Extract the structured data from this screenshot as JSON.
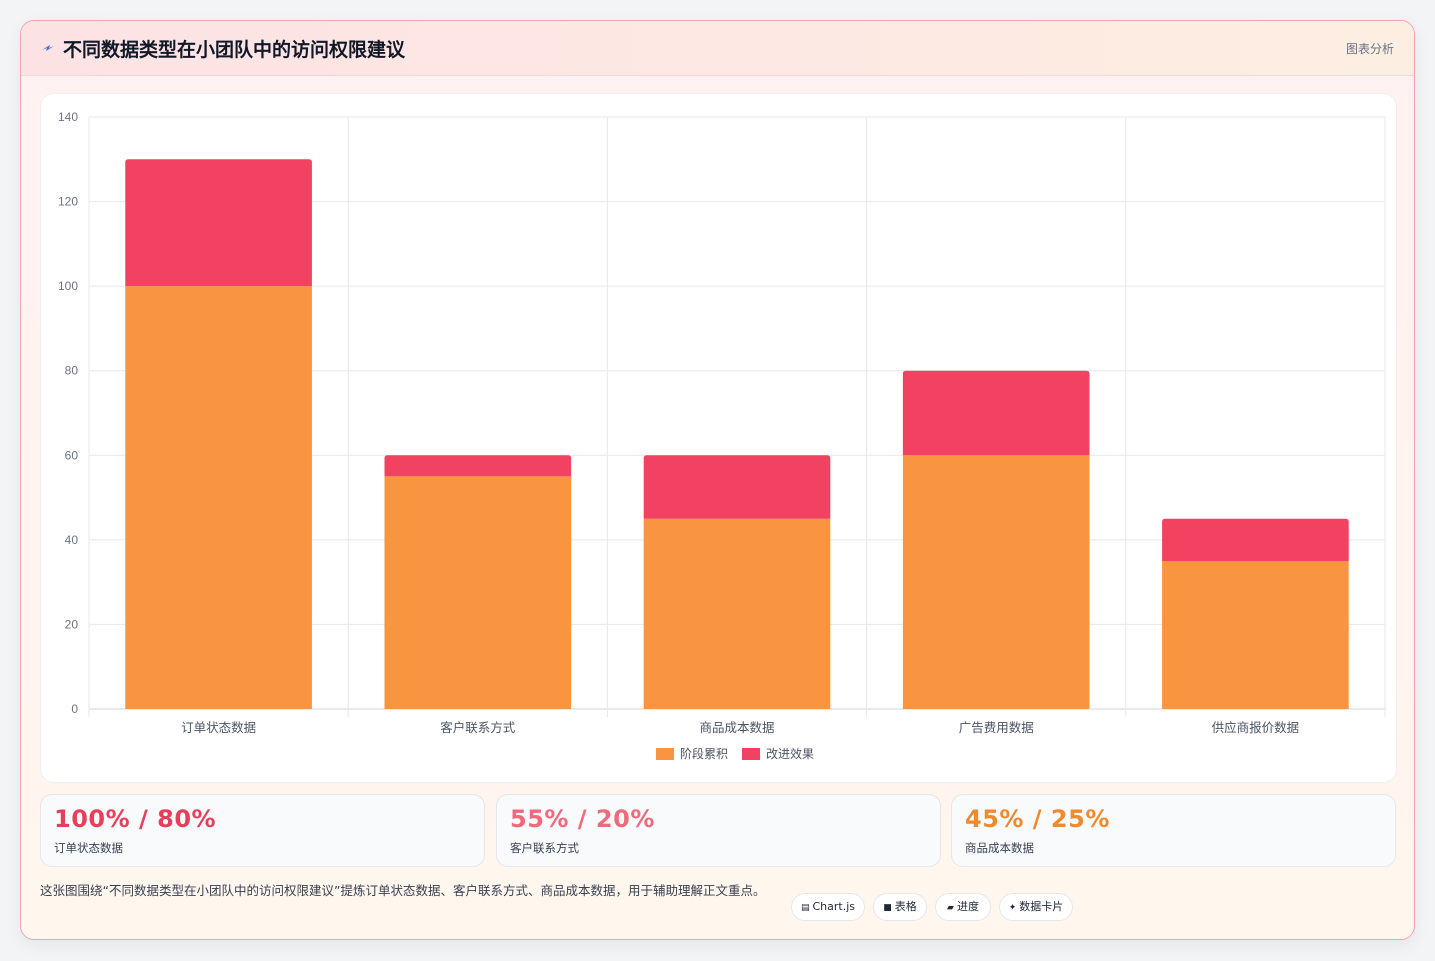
{
  "header": {
    "title": "不同数据类型在小团队中的访问权限建议",
    "tag": "图表分析",
    "icon": "lightning-icon"
  },
  "chart_data": {
    "type": "bar",
    "stacked": true,
    "categories": [
      "订单状态数据",
      "客户联系方式",
      "商品成本数据",
      "广告费用数据",
      "供应商报价数据"
    ],
    "series": [
      {
        "name": "阶段累积",
        "values": [
          100,
          55,
          45,
          60,
          35
        ],
        "color": "#f99440"
      },
      {
        "name": "改进效果",
        "values": [
          30,
          5,
          15,
          20,
          10
        ],
        "color": "#f24262"
      }
    ],
    "ylim": [
      0,
      140
    ],
    "yticks": [
      0,
      20,
      40,
      60,
      80,
      100,
      120,
      140
    ],
    "grid": true,
    "legend": "bottom"
  },
  "stats": [
    {
      "value": "100% / 80%",
      "label": "订单状态数据",
      "color": "#e83e5c"
    },
    {
      "value": "55% / 20%",
      "label": "客户联系方式",
      "color": "#f06a7c"
    },
    {
      "value": "45% / 25%",
      "label": "商品成本数据",
      "color": "#f08a2e"
    }
  ],
  "description": "这张图围绕“不同数据类型在小团队中的访问权限建议”提炼订单状态数据、客户联系方式、商品成本数据，用于辅助理解正文重点。",
  "chips": [
    {
      "icon": "▤",
      "label": "Chart.js",
      "icon_name": "chart-icon"
    },
    {
      "icon": "■",
      "label": "表格",
      "icon_name": "table-icon"
    },
    {
      "icon": "▰",
      "label": "进度",
      "icon_name": "progress-icon"
    },
    {
      "icon": "✦",
      "label": "数据卡片",
      "icon_name": "sparkle-icon"
    }
  ]
}
